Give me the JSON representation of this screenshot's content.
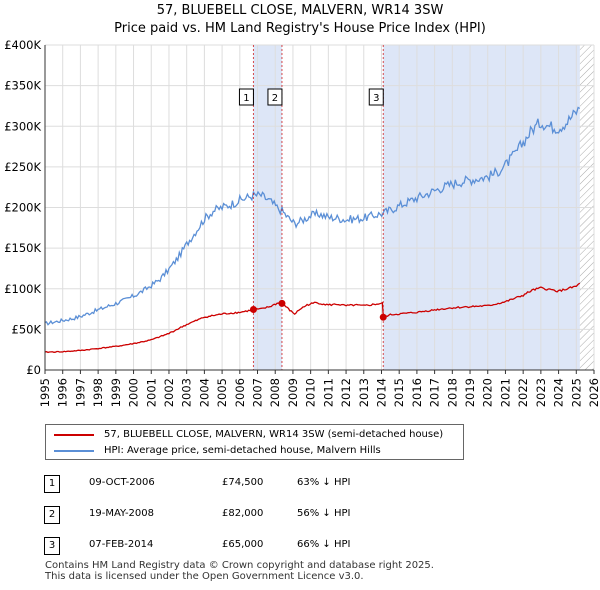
{
  "title_line1": "57, BLUEBELL CLOSE, MALVERN, WR14 3SW",
  "title_line2": "Price paid vs. HM Land Registry's House Price Index (HPI)",
  "chart_data": {
    "type": "line",
    "xlim": [
      1995,
      2026
    ],
    "ylim": [
      0,
      400000
    ],
    "y_ticks": [
      0,
      50000,
      100000,
      150000,
      200000,
      250000,
      300000,
      350000,
      400000
    ],
    "y_tick_labels": [
      "£0",
      "£50K",
      "£100K",
      "£150K",
      "£200K",
      "£250K",
      "£300K",
      "£350K",
      "£400K"
    ],
    "x_ticks": [
      1995,
      1996,
      1997,
      1998,
      1999,
      2000,
      2001,
      2002,
      2003,
      2004,
      2005,
      2006,
      2007,
      2008,
      2009,
      2010,
      2011,
      2012,
      2013,
      2014,
      2015,
      2016,
      2017,
      2018,
      2019,
      2020,
      2021,
      2022,
      2023,
      2024,
      2025,
      2026
    ],
    "x_tick_labels": [
      "1995",
      "1996",
      "1997",
      "1998",
      "1999",
      "2000",
      "2001",
      "2002",
      "2003",
      "2004",
      "2005",
      "2006",
      "2007",
      "2008",
      "2009",
      "2010",
      "2011",
      "2012",
      "2013",
      "2014",
      "2015",
      "2016",
      "2017",
      "2018",
      "2019",
      "2020",
      "2021",
      "2022",
      "2023",
      "2024",
      "2025",
      "2026"
    ],
    "shaded_ranges": [
      [
        2006.77,
        2008.38
      ],
      [
        2014.1,
        2025.2
      ]
    ],
    "hatched_range": [
      2025.2,
      2026
    ],
    "series": [
      {
        "name": "57, BLUEBELL CLOSE, MALVERN, WR14 3SW (semi-detached house)",
        "color": "#cc0000",
        "points": [
          [
            1995.0,
            22000
          ],
          [
            1996.0,
            22500
          ],
          [
            1997.0,
            24000
          ],
          [
            1998.0,
            26500
          ],
          [
            1999.0,
            29000
          ],
          [
            2000.0,
            32500
          ],
          [
            2001.0,
            37000
          ],
          [
            2002.0,
            45000
          ],
          [
            2003.0,
            56000
          ],
          [
            2004.0,
            65000
          ],
          [
            2005.0,
            69000
          ],
          [
            2006.0,
            71000
          ],
          [
            2006.5,
            73000
          ],
          [
            2006.77,
            74500
          ],
          [
            2007.2,
            75000
          ],
          [
            2007.7,
            78000
          ],
          [
            2008.1,
            82000
          ],
          [
            2008.38,
            82000
          ],
          [
            2008.6,
            78000
          ],
          [
            2008.9,
            72000
          ],
          [
            2009.1,
            69000
          ],
          [
            2009.4,
            75000
          ],
          [
            2009.8,
            80000
          ],
          [
            2010.3,
            83000
          ],
          [
            2011.0,
            80000
          ],
          [
            2011.5,
            81000
          ],
          [
            2012.0,
            79000
          ],
          [
            2012.5,
            80000
          ],
          [
            2013.0,
            79000
          ],
          [
            2013.5,
            80500
          ],
          [
            2014.05,
            82000
          ],
          [
            2014.1,
            65000
          ],
          [
            2014.5,
            68000
          ],
          [
            2015.0,
            69000
          ],
          [
            2016.0,
            71000
          ],
          [
            2017.0,
            74000
          ],
          [
            2018.0,
            76500
          ],
          [
            2019.0,
            78000
          ],
          [
            2020.0,
            79000
          ],
          [
            2021.0,
            84000
          ],
          [
            2021.5,
            88000
          ],
          [
            2022.0,
            92000
          ],
          [
            2022.5,
            98000
          ],
          [
            2023.0,
            101000
          ],
          [
            2023.5,
            99000
          ],
          [
            2024.0,
            97000
          ],
          [
            2024.5,
            100000
          ],
          [
            2025.0,
            103000
          ],
          [
            2025.2,
            107000
          ]
        ]
      },
      {
        "name": "HPI: Average price, semi-detached house, Malvern Hills",
        "color": "#5b8fd6",
        "points": [
          [
            1995.0,
            57000
          ],
          [
            1995.5,
            59000
          ],
          [
            1996.0,
            61000
          ],
          [
            1996.5,
            63000
          ],
          [
            1997.0,
            66000
          ],
          [
            1997.5,
            70000
          ],
          [
            1998.0,
            74000
          ],
          [
            1998.5,
            78000
          ],
          [
            1999.0,
            82000
          ],
          [
            1999.5,
            86000
          ],
          [
            2000.0,
            91000
          ],
          [
            2000.5,
            97000
          ],
          [
            2001.0,
            104000
          ],
          [
            2001.5,
            112000
          ],
          [
            2002.0,
            124000
          ],
          [
            2002.5,
            138000
          ],
          [
            2003.0,
            155000
          ],
          [
            2003.5,
            170000
          ],
          [
            2004.0,
            186000
          ],
          [
            2004.5,
            196000
          ],
          [
            2005.0,
            200000
          ],
          [
            2005.5,
            204000
          ],
          [
            2006.0,
            209000
          ],
          [
            2006.77,
            215000
          ],
          [
            2007.2,
            215000
          ],
          [
            2007.7,
            208000
          ],
          [
            2008.1,
            200000
          ],
          [
            2008.38,
            196000
          ],
          [
            2008.7,
            188000
          ],
          [
            2009.1,
            180000
          ],
          [
            2009.5,
            184000
          ],
          [
            2010.0,
            190000
          ],
          [
            2010.5,
            192000
          ],
          [
            2011.0,
            188000
          ],
          [
            2011.5,
            187000
          ],
          [
            2012.0,
            185000
          ],
          [
            2012.5,
            186000
          ],
          [
            2013.0,
            187000
          ],
          [
            2013.5,
            190000
          ],
          [
            2014.1,
            193000
          ],
          [
            2014.5,
            197000
          ],
          [
            2015.0,
            202000
          ],
          [
            2015.5,
            207000
          ],
          [
            2016.0,
            212000
          ],
          [
            2016.5,
            216000
          ],
          [
            2017.0,
            221000
          ],
          [
            2017.5,
            225000
          ],
          [
            2018.0,
            229000
          ],
          [
            2018.5,
            232000
          ],
          [
            2019.0,
            234000
          ],
          [
            2019.5,
            236000
          ],
          [
            2020.0,
            238000
          ],
          [
            2020.5,
            243000
          ],
          [
            2021.0,
            252000
          ],
          [
            2021.5,
            265000
          ],
          [
            2022.0,
            280000
          ],
          [
            2022.5,
            296000
          ],
          [
            2023.0,
            305000
          ],
          [
            2023.5,
            300000
          ],
          [
            2024.0,
            298000
          ],
          [
            2024.5,
            306000
          ],
          [
            2025.0,
            318000
          ],
          [
            2025.2,
            322000
          ]
        ]
      }
    ],
    "sales": [
      {
        "label": "1",
        "x": 2006.77,
        "value": 74500
      },
      {
        "label": "2",
        "x": 2008.38,
        "value": 82000
      },
      {
        "label": "3",
        "x": 2014.1,
        "value": 65000
      }
    ]
  },
  "legend": {
    "property": "57, BLUEBELL CLOSE, MALVERN, WR14 3SW (semi-detached house)",
    "hpi": "HPI: Average price, semi-detached house, Malvern Hills"
  },
  "transactions": [
    {
      "num": "1",
      "date": "09-OCT-2006",
      "price": "£74,500",
      "hpi": "63% ↓ HPI"
    },
    {
      "num": "2",
      "date": "19-MAY-2008",
      "price": "£82,000",
      "hpi": "56% ↓ HPI"
    },
    {
      "num": "3",
      "date": "07-FEB-2014",
      "price": "£65,000",
      "hpi": "66% ↓ HPI"
    }
  ],
  "footer_line1": "Contains HM Land Registry data © Crown copyright and database right 2025.",
  "footer_line2": "This data is licensed under the Open Government Licence v3.0.",
  "colors": {
    "property": "#cc0000",
    "hpi": "#5b8fd6",
    "shade": "#dde6f7"
  }
}
